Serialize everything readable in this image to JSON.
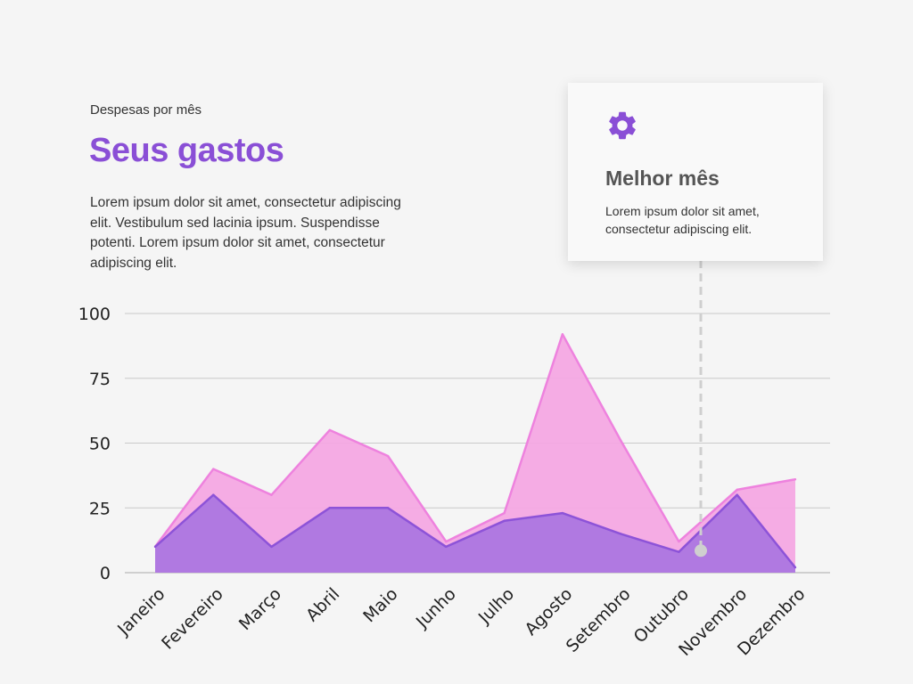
{
  "header": {
    "subtitle": "Despesas por mês",
    "title": "Seus gastos",
    "description": "Lorem ipsum dolor sit amet, consectetur adipiscing elit. Vestibulum sed lacinia ipsum. Suspendisse potenti. Lorem ipsum dolor sit amet, consectetur adipiscing elit."
  },
  "card": {
    "icon": "gear-icon",
    "title": "Melhor mês",
    "text": "Lorem ipsum dolor sit amet, consectetur adipiscing elit."
  },
  "colors": {
    "accent": "#8a4fd6",
    "series_back_fill": "#f4a8e3",
    "series_back_line": "#ee82de",
    "series_front_fill": "#ac76e0",
    "series_front_line": "#8d53d8",
    "marker": "#cfcfcf"
  },
  "chart_data": {
    "type": "area",
    "categories": [
      "Janeiro",
      "Fevereiro",
      "Março",
      "Abril",
      "Maio",
      "Junho",
      "Julho",
      "Agosto",
      "Setembro",
      "Outubro",
      "Novembro",
      "Dezembro"
    ],
    "series": [
      {
        "values": [
          10,
          40,
          30,
          55,
          45,
          12,
          23,
          92,
          51,
          12,
          32,
          36
        ]
      },
      {
        "values": [
          10,
          30,
          10,
          25,
          25,
          10,
          20,
          23,
          15,
          8,
          30,
          2
        ]
      }
    ],
    "yticks": [
      "0",
      "25",
      "50",
      "75",
      "100"
    ],
    "ylim": [
      0,
      100
    ],
    "grid": true,
    "highlight": {
      "category": "Outubro",
      "value": 8.5
    }
  }
}
